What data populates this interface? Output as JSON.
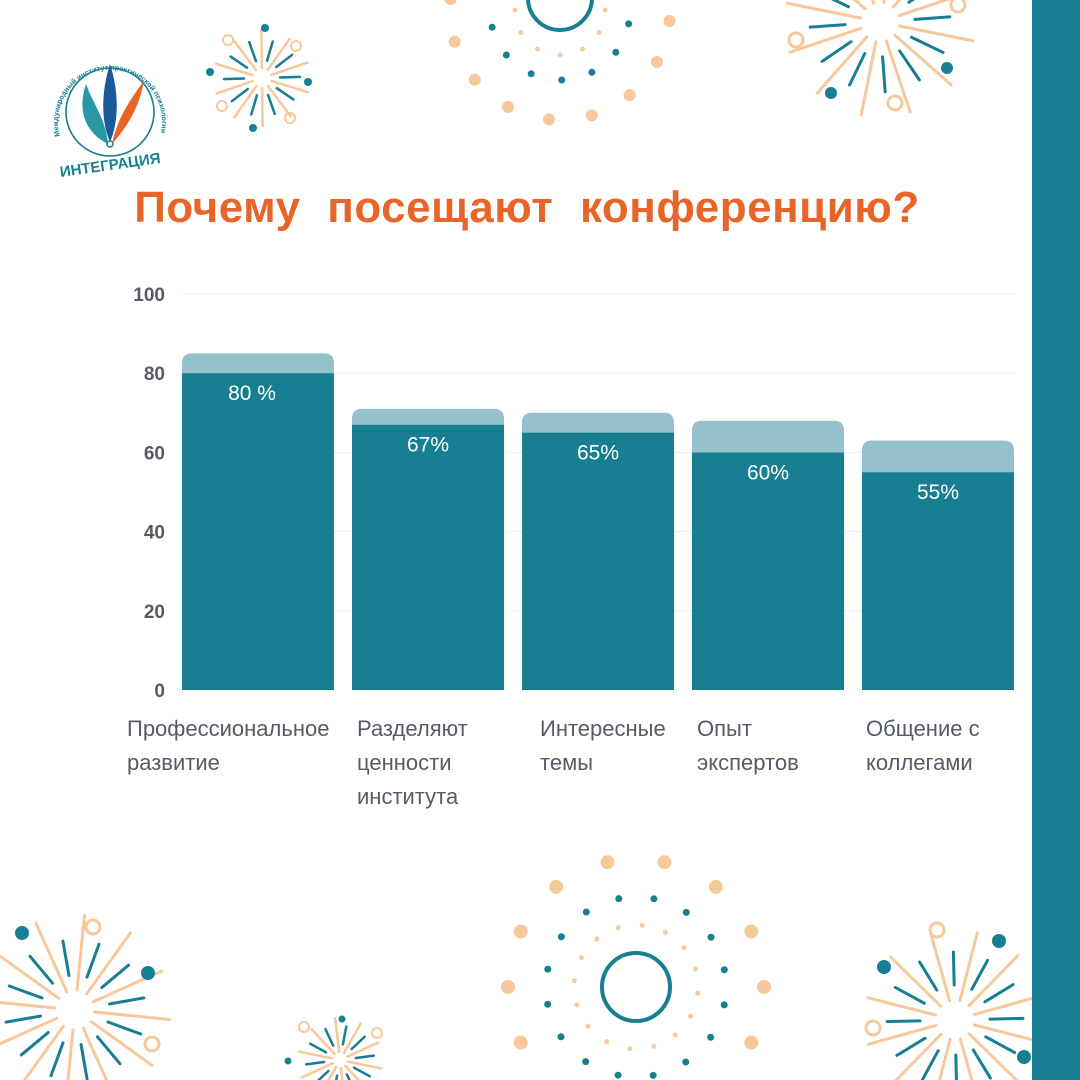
{
  "title": "Почему  посещают  конференцию?",
  "logo": {
    "arc_text": "Международный институт практической психологии и психотерапии",
    "name": "ИНТЕГРАЦИЯ"
  },
  "colors": {
    "bar": "#177f91",
    "bar_top": "#94c1ca",
    "title": "#e8652a",
    "axis_text": "#555b66",
    "decor_orange": "#f7c89b",
    "decor_teal": "#177f91"
  },
  "chart_data": {
    "type": "bar",
    "categories": [
      "Профессиональное\nразвитие",
      "Разделяют\nценности\nинститута",
      "Интересные\nтемы",
      "Опыт\nэкспертов",
      "Общение с\nколлегами"
    ],
    "values": [
      80,
      67,
      65,
      60,
      55
    ],
    "top_values": [
      85,
      71,
      70,
      68,
      63
    ],
    "data_labels": [
      "80 %",
      "67%",
      "65%",
      "60%",
      "55%"
    ],
    "yticks": [
      0,
      20,
      40,
      60,
      80,
      100
    ],
    "ylim": [
      0,
      100
    ],
    "grid": true
  }
}
